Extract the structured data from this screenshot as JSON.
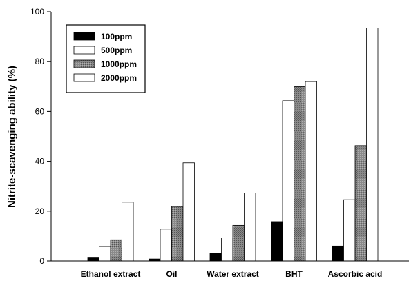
{
  "chart_data": {
    "type": "bar",
    "title": "",
    "xlabel": "",
    "ylabel": "Nitrite-scavenging ability (%)",
    "ylim": [
      0,
      100
    ],
    "yticks": [
      0,
      20,
      40,
      60,
      80,
      100
    ],
    "grid": false,
    "legend_position": "top-left",
    "categories": [
      "Ethanol extract",
      "Oil",
      "Water extract",
      "BHT",
      "Ascorbic acid"
    ],
    "series": [
      {
        "name": "100ppm",
        "pattern": "solid-black",
        "values": [
          1.5,
          0.8,
          3.2,
          15.8,
          6.0
        ]
      },
      {
        "name": "500ppm",
        "pattern": "white",
        "values": [
          5.8,
          12.8,
          9.3,
          64.3,
          24.6
        ]
      },
      {
        "name": "1000ppm",
        "pattern": "gray-stipple",
        "values": [
          8.5,
          21.9,
          14.3,
          70.0,
          46.3
        ]
      },
      {
        "name": "2000ppm",
        "pattern": "white",
        "values": [
          23.6,
          39.4,
          27.3,
          72.0,
          93.5
        ]
      }
    ]
  }
}
